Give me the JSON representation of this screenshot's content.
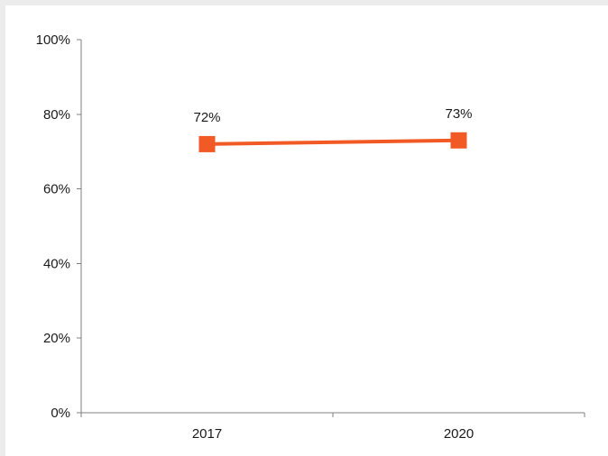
{
  "chart_data": {
    "type": "line",
    "categories": [
      "2017",
      "2020"
    ],
    "series": [
      {
        "values": [
          72,
          73
        ],
        "color": "#f15a24",
        "marker": "square"
      }
    ],
    "data_labels": [
      "72%",
      "73%"
    ],
    "title": "",
    "xlabel": "",
    "ylabel": "",
    "ylim": [
      0,
      100
    ],
    "y_ticks": [
      0,
      20,
      40,
      60,
      80,
      100
    ],
    "y_tick_labels": [
      "0%",
      "20%",
      "40%",
      "60%",
      "80%",
      "100%"
    ],
    "grid": false,
    "legend": "none"
  }
}
